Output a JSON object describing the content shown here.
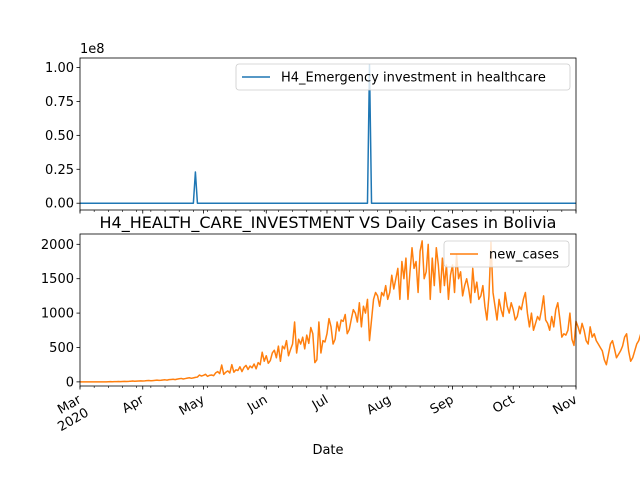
{
  "chart_data": [
    {
      "type": "line",
      "title": "",
      "xlabel": "",
      "ylabel": "",
      "offset_text": "1e8",
      "ylim": [
        -0.05,
        1.07
      ],
      "yticks": [
        0.0,
        0.25,
        0.5,
        0.75,
        1.0
      ],
      "ytick_labels": [
        "0.00",
        "0.25",
        "0.50",
        "0.75",
        "1.00"
      ],
      "legend": "upper right",
      "x_axis_shared": true,
      "series": [
        {
          "name": "H4_Emergency investment in healthcare",
          "color": "#1f77b4",
          "x": [
            "2020-03-01",
            "2020-04-26",
            "2020-04-27",
            "2020-04-28",
            "2020-07-21",
            "2020-07-22",
            "2020-07-23",
            "2020-11-01"
          ],
          "values": [
            0,
            0,
            0.23,
            0,
            0,
            1.02,
            0,
            0
          ]
        }
      ]
    },
    {
      "type": "line",
      "title": "H4_HEALTH_CARE_INVESTMENT VS Daily Cases in Bolivia",
      "xlabel": "Date",
      "ylabel": "",
      "ylim": [
        -60,
        2150
      ],
      "yticks": [
        0,
        500,
        1000,
        1500,
        2000
      ],
      "ytick_labels": [
        "0",
        "500",
        "1000",
        "1500",
        "2000"
      ],
      "xlim": [
        "2020-03-01",
        "2020-11-01"
      ],
      "xtick_labels": [
        "Mar\n2020",
        "Apr",
        "May",
        "Jun",
        "Jul",
        "Aug",
        "Sep",
        "Oct",
        "Nov"
      ],
      "legend": "upper right",
      "series": [
        {
          "name": "new_cases",
          "color": "#ff7f0e",
          "start_date": "2020-03-01",
          "values": [
            0,
            0,
            0,
            0,
            0,
            0,
            0,
            0,
            0,
            0,
            0,
            0,
            0,
            0,
            2,
            3,
            2,
            4,
            3,
            5,
            4,
            6,
            8,
            5,
            7,
            10,
            12,
            9,
            11,
            13,
            15,
            12,
            14,
            18,
            20,
            16,
            19,
            22,
            25,
            21,
            24,
            28,
            30,
            26,
            32,
            35,
            38,
            33,
            40,
            45,
            50,
            42,
            48,
            55,
            60,
            52,
            58,
            65,
            70,
            100,
            85,
            95,
            110,
            80,
            95,
            100,
            90,
            130,
            150,
            120,
            245,
            110,
            140,
            160,
            130,
            250,
            140,
            175,
            165,
            220,
            150,
            210,
            240,
            180,
            230,
            205,
            260,
            190,
            280,
            250,
            430,
            300,
            380,
            270,
            310,
            420,
            460,
            350,
            520,
            300,
            520,
            480,
            600,
            380,
            470,
            550,
            870,
            420,
            620,
            550,
            650,
            480,
            680,
            560,
            790,
            700,
            280,
            320,
            870,
            420,
            600,
            580,
            700,
            920,
            800,
            550,
            620,
            870,
            740,
            900,
            880,
            980,
            700,
            760,
            910,
            1050,
            1000,
            870,
            1150,
            800,
            1100,
            1000,
            1200,
            600,
            900,
            1200,
            1300,
            1250,
            1100,
            1300,
            1250,
            1400,
            1200,
            1300,
            1550,
            1350,
            1500,
            1650,
            1200,
            1750,
            1500,
            1800,
            1200,
            1600,
            1950,
            1650,
            1750,
            1300,
            1900,
            2050,
            1500,
            1600,
            2000,
            1200,
            1800,
            1400,
            1950,
            1700,
            1300,
            1800,
            1400,
            1700,
            1200,
            1550,
            1700,
            1300,
            1850,
            1500,
            1600,
            1250,
            1400,
            1500,
            1350,
            1150,
            1650,
            1300,
            1450,
            1200,
            1250,
            1400,
            1100,
            900,
            1250,
            2030,
            1300,
            1100,
            900,
            1200,
            1050,
            950,
            1300,
            1100,
            1000,
            1150,
            1050,
            900,
            950,
            1100,
            1050,
            1200,
            1300,
            1000,
            800,
            1000,
            750,
            850,
            950,
            900,
            1050,
            1250,
            900,
            850,
            750,
            950,
            800,
            1050,
            1150,
            920,
            650,
            700,
            680,
            750,
            1000,
            620,
            530,
            880,
            800,
            700,
            850,
            750,
            600,
            550,
            800,
            650,
            700,
            600,
            550,
            500,
            450,
            320,
            250,
            400,
            550,
            600,
            480,
            350,
            400,
            450,
            520,
            650,
            700,
            450,
            300,
            350,
            450,
            550,
            600,
            700,
            500,
            350,
            280,
            320,
            480,
            550,
            620,
            680,
            520,
            420,
            380,
            350,
            300,
            550,
            320,
            380,
            280,
            400,
            250,
            220,
            260,
            300,
            250,
            180,
            220,
            200,
            240,
            260,
            200,
            190,
            180,
            160,
            150,
            140,
            180,
            200,
            150,
            130,
            110,
            120,
            140,
            170,
            200,
            180,
            150,
            100
          ]
        }
      ]
    }
  ]
}
